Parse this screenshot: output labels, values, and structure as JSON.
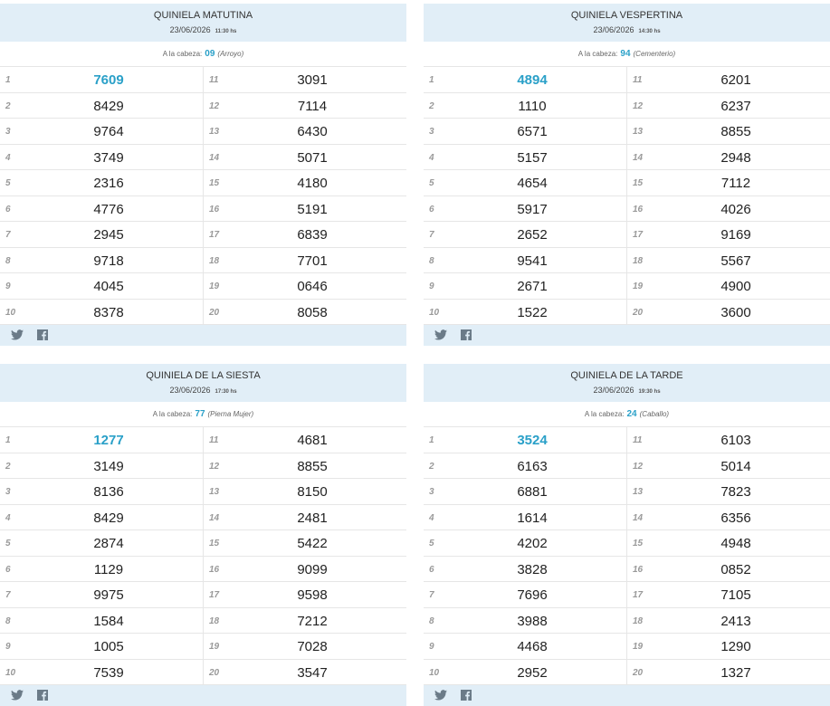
{
  "panels": [
    {
      "title": "QUINIELA MATUTINA",
      "date": "23/06/2026",
      "time": "11:30 hs",
      "head_label": "A la cabeza:",
      "head_number": "09",
      "head_name": "(Arroyo)",
      "positions": [
        "1",
        "2",
        "3",
        "4",
        "5",
        "6",
        "7",
        "8",
        "9",
        "10",
        "11",
        "12",
        "13",
        "14",
        "15",
        "16",
        "17",
        "18",
        "19",
        "20"
      ],
      "numbers": [
        "7609",
        "8429",
        "9764",
        "3749",
        "2316",
        "4776",
        "2945",
        "9718",
        "4045",
        "8378",
        "3091",
        "7114",
        "6430",
        "5071",
        "4180",
        "5191",
        "6839",
        "7701",
        "0646",
        "8058"
      ]
    },
    {
      "title": "QUINIELA VESPERTINA",
      "date": "23/06/2026",
      "time": "14:30 hs",
      "head_label": "A la cabeza:",
      "head_number": "94",
      "head_name": "(Cementerio)",
      "positions": [
        "1",
        "2",
        "3",
        "4",
        "5",
        "6",
        "7",
        "8",
        "9",
        "10",
        "11",
        "12",
        "13",
        "14",
        "15",
        "16",
        "17",
        "18",
        "19",
        "20"
      ],
      "numbers": [
        "4894",
        "1110",
        "6571",
        "5157",
        "4654",
        "5917",
        "2652",
        "9541",
        "2671",
        "1522",
        "6201",
        "6237",
        "8855",
        "2948",
        "7112",
        "4026",
        "9169",
        "5567",
        "4900",
        "3600"
      ]
    },
    {
      "title": "QUINIELA DE LA SIESTA",
      "date": "23/06/2026",
      "time": "17:30 hs",
      "head_label": "A la cabeza:",
      "head_number": "77",
      "head_name": "(Pierna Mujer)",
      "positions": [
        "1",
        "2",
        "3",
        "4",
        "5",
        "6",
        "7",
        "8",
        "9",
        "10",
        "11",
        "12",
        "13",
        "14",
        "15",
        "16",
        "17",
        "18",
        "19",
        "20"
      ],
      "numbers": [
        "1277",
        "3149",
        "8136",
        "8429",
        "2874",
        "1129",
        "9975",
        "1584",
        "1005",
        "7539",
        "4681",
        "8855",
        "8150",
        "2481",
        "5422",
        "9099",
        "9598",
        "7212",
        "7028",
        "3547"
      ]
    },
    {
      "title": "QUINIELA DE LA TARDE",
      "date": "23/06/2026",
      "time": "19:30 hs",
      "head_label": "A la cabeza:",
      "head_number": "24",
      "head_name": "(Caballo)",
      "positions": [
        "1",
        "2",
        "3",
        "4",
        "5",
        "6",
        "7",
        "8",
        "9",
        "10",
        "11",
        "12",
        "13",
        "14",
        "15",
        "16",
        "17",
        "18",
        "19",
        "20"
      ],
      "numbers": [
        "3524",
        "6163",
        "6881",
        "1614",
        "4202",
        "3828",
        "7696",
        "3988",
        "4468",
        "2952",
        "6103",
        "5014",
        "7823",
        "6356",
        "4948",
        "0852",
        "7105",
        "2413",
        "1290",
        "1327"
      ]
    }
  ]
}
